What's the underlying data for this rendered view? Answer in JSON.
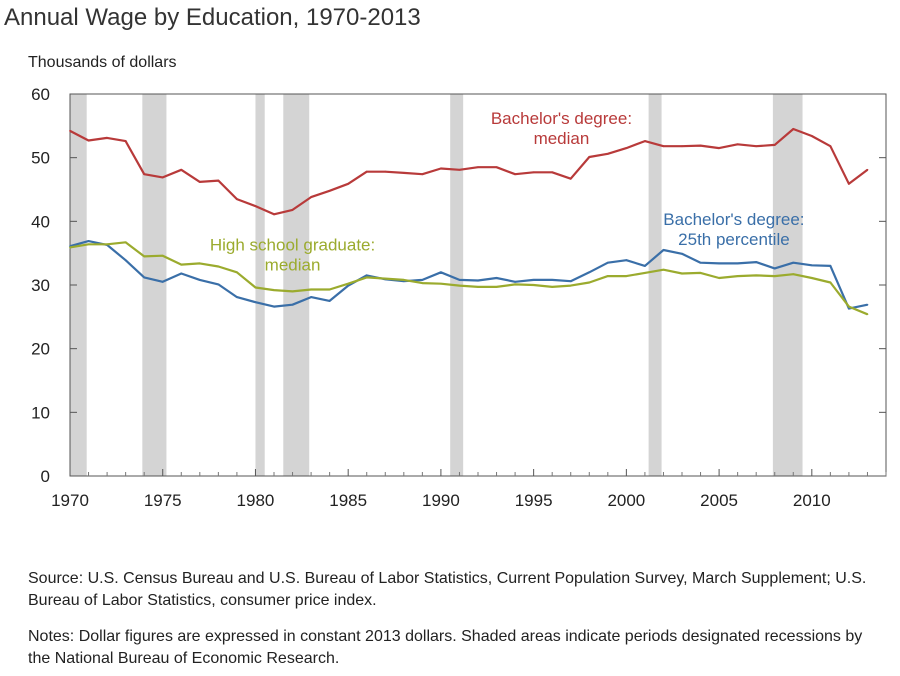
{
  "chart_data": {
    "type": "line",
    "title": "Annual Wage by Education, 1970-2013",
    "ylabel": "Thousands of dollars",
    "xlim": [
      1970,
      2014
    ],
    "ylim": [
      0,
      60
    ],
    "x_ticks": [
      1970,
      1975,
      1980,
      1985,
      1990,
      1995,
      2000,
      2005,
      2010
    ],
    "y_ticks": [
      0,
      10,
      20,
      30,
      40,
      50,
      60
    ],
    "grid": false,
    "legend": "inline labels",
    "recessions": [
      [
        1970.0,
        1970.9
      ],
      [
        1973.9,
        1975.2
      ],
      [
        1980.0,
        1980.5
      ],
      [
        1981.5,
        1982.9
      ],
      [
        1990.5,
        1991.2
      ],
      [
        2001.2,
        2001.9
      ],
      [
        2007.9,
        2009.5
      ]
    ],
    "x": [
      1970,
      1971,
      1972,
      1973,
      1974,
      1975,
      1976,
      1977,
      1978,
      1979,
      1980,
      1981,
      1982,
      1983,
      1984,
      1985,
      1986,
      1987,
      1988,
      1989,
      1990,
      1991,
      1992,
      1993,
      1994,
      1995,
      1996,
      1997,
      1998,
      1999,
      2000,
      2001,
      2002,
      2003,
      2004,
      2005,
      2006,
      2007,
      2008,
      2009,
      2010,
      2011,
      2012,
      2013
    ],
    "series": [
      {
        "name": "Bachelor's degree: median",
        "label_lines": [
          "Bachelor's degree:",
          "median"
        ],
        "color": "#b83a3a",
        "values": [
          54.2,
          52.7,
          53.1,
          52.6,
          47.4,
          46.9,
          48.1,
          46.2,
          46.4,
          43.5,
          42.4,
          41.1,
          41.8,
          43.8,
          44.8,
          45.9,
          47.8,
          47.8,
          47.6,
          47.4,
          48.3,
          48.1,
          48.5,
          48.5,
          47.4,
          47.7,
          47.7,
          46.7,
          50.1,
          50.6,
          51.5,
          52.6,
          51.8,
          51.8,
          51.9,
          51.5,
          52.1,
          51.8,
          52.0,
          54.5,
          53.4,
          51.8,
          45.9,
          48.1
        ]
      },
      {
        "name": "Bachelor's degree: 25th percentile",
        "label_lines": [
          "Bachelor's degree:",
          "25th percentile"
        ],
        "color": "#3a6fa8",
        "values": [
          36.1,
          36.9,
          36.3,
          33.9,
          31.2,
          30.5,
          31.8,
          30.8,
          30.1,
          28.1,
          27.3,
          26.6,
          26.9,
          28.1,
          27.5,
          29.9,
          31.5,
          30.9,
          30.6,
          30.8,
          32.0,
          30.8,
          30.7,
          31.1,
          30.5,
          30.8,
          30.8,
          30.6,
          32.0,
          33.5,
          33.9,
          33.0,
          35.5,
          34.9,
          33.5,
          33.4,
          33.4,
          33.6,
          32.6,
          33.5,
          33.1,
          33.0,
          26.3,
          26.9
        ]
      },
      {
        "name": "High school graduate: median",
        "label_lines": [
          "High school graduate:",
          "median"
        ],
        "color": "#9bab2e",
        "values": [
          35.9,
          36.4,
          36.4,
          36.7,
          34.5,
          34.6,
          33.2,
          33.4,
          32.9,
          32.0,
          29.6,
          29.2,
          29.0,
          29.3,
          29.3,
          30.2,
          31.2,
          31.0,
          30.8,
          30.3,
          30.2,
          29.9,
          29.7,
          29.7,
          30.1,
          30.0,
          29.7,
          29.9,
          30.4,
          31.4,
          31.4,
          31.9,
          32.4,
          31.8,
          31.9,
          31.1,
          31.4,
          31.5,
          31.4,
          31.7,
          31.1,
          30.4,
          26.6,
          25.4
        ]
      }
    ]
  },
  "source_text": "Source: U.S. Census Bureau and U.S. Bureau of Labor Statistics, Current Population Survey, March Supplement; U.S. Bureau of Labor Statistics, consumer price index.",
  "notes_text": "Notes: Dollar figures are expressed in constant 2013 dollars. Shaded areas indicate periods designated recessions by the National Bureau of Economic Research."
}
